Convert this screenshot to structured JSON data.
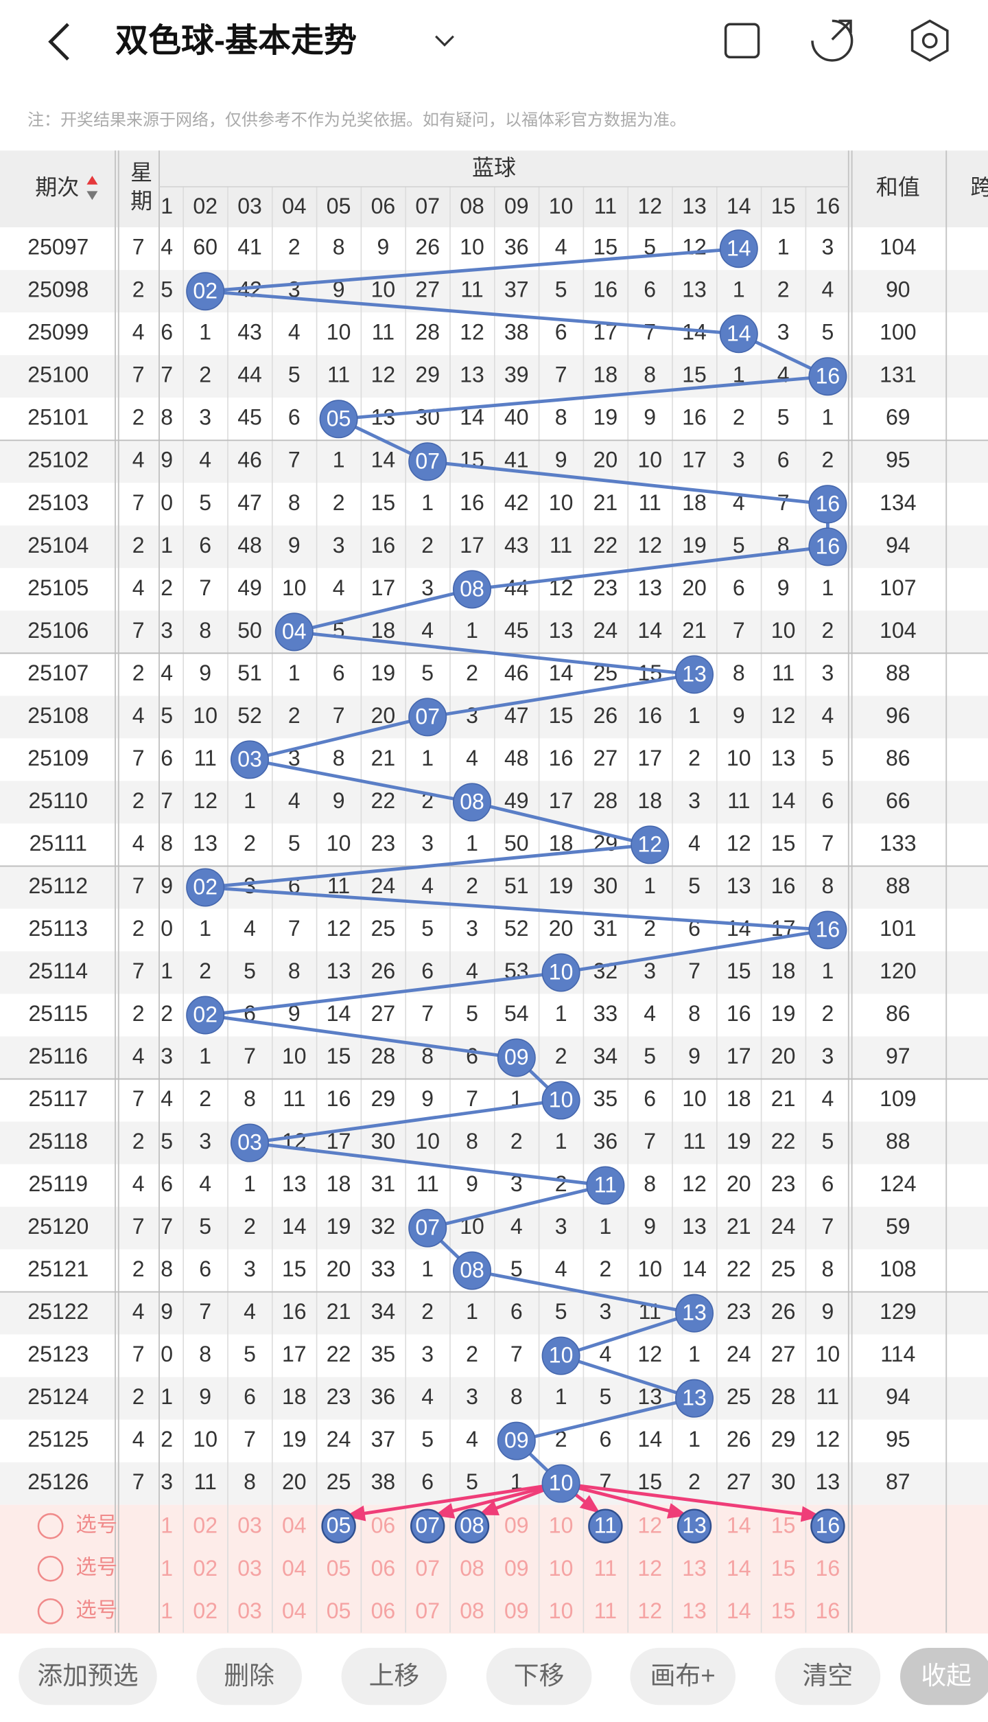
{
  "header": {
    "title": "双色球-基本走势"
  },
  "note": "注：开奖结果来源于网络，仅供参考不作为兑奖依据。如有疑问，以福体彩官方数据为准。",
  "table": {
    "period_header": "期次",
    "weekday_header": "星期",
    "group_header": "蓝球",
    "sum_header": "和值",
    "span_header": "跨",
    "columns": [
      "1",
      "02",
      "03",
      "04",
      "05",
      "06",
      "07",
      "08",
      "09",
      "10",
      "11",
      "12",
      "13",
      "14",
      "15",
      "16"
    ],
    "rows": [
      {
        "period": "25097",
        "weekday": "7",
        "cells": [
          "4",
          "60",
          "41",
          "2",
          "8",
          "9",
          "26",
          "10",
          "36",
          "4",
          "15",
          "5",
          "12",
          "14",
          "1",
          "3"
        ],
        "hit": 13,
        "sum": "104"
      },
      {
        "period": "25098",
        "weekday": "2",
        "cells": [
          "5",
          "02",
          "42",
          "3",
          "9",
          "10",
          "27",
          "11",
          "37",
          "5",
          "16",
          "6",
          "13",
          "1",
          "2",
          "4"
        ],
        "hit": 1,
        "sum": "90"
      },
      {
        "period": "25099",
        "weekday": "4",
        "cells": [
          "6",
          "1",
          "43",
          "4",
          "10",
          "11",
          "28",
          "12",
          "38",
          "6",
          "17",
          "7",
          "14",
          "14",
          "3",
          "5"
        ],
        "hit": 13,
        "sum": "100"
      },
      {
        "period": "25100",
        "weekday": "7",
        "cells": [
          "7",
          "2",
          "44",
          "5",
          "11",
          "12",
          "29",
          "13",
          "39",
          "7",
          "18",
          "8",
          "15",
          "1",
          "4",
          "16"
        ],
        "hit": 15,
        "sum": "131"
      },
      {
        "period": "25101",
        "weekday": "2",
        "cells": [
          "8",
          "3",
          "45",
          "6",
          "05",
          "13",
          "30",
          "14",
          "40",
          "8",
          "19",
          "9",
          "16",
          "2",
          "5",
          "1"
        ],
        "hit": 4,
        "sum": "69"
      },
      {
        "period": "25102",
        "weekday": "4",
        "cells": [
          "9",
          "4",
          "46",
          "7",
          "1",
          "14",
          "07",
          "15",
          "41",
          "9",
          "20",
          "10",
          "17",
          "3",
          "6",
          "2"
        ],
        "hit": 6,
        "sum": "95"
      },
      {
        "period": "25103",
        "weekday": "7",
        "cells": [
          "0",
          "5",
          "47",
          "8",
          "2",
          "15",
          "1",
          "16",
          "42",
          "10",
          "21",
          "11",
          "18",
          "4",
          "7",
          "16"
        ],
        "hit": 15,
        "sum": "134"
      },
      {
        "period": "25104",
        "weekday": "2",
        "cells": [
          "1",
          "6",
          "48",
          "9",
          "3",
          "16",
          "2",
          "17",
          "43",
          "11",
          "22",
          "12",
          "19",
          "5",
          "8",
          "16"
        ],
        "hit": 15,
        "sum": "94"
      },
      {
        "period": "25105",
        "weekday": "4",
        "cells": [
          "2",
          "7",
          "49",
          "10",
          "4",
          "17",
          "3",
          "08",
          "44",
          "12",
          "23",
          "13",
          "20",
          "6",
          "9",
          "1"
        ],
        "hit": 7,
        "sum": "107"
      },
      {
        "period": "25106",
        "weekday": "7",
        "cells": [
          "3",
          "8",
          "50",
          "04",
          "5",
          "18",
          "4",
          "1",
          "45",
          "13",
          "24",
          "14",
          "21",
          "7",
          "10",
          "2"
        ],
        "hit": 3,
        "sum": "104"
      },
      {
        "period": "25107",
        "weekday": "2",
        "cells": [
          "4",
          "9",
          "51",
          "1",
          "6",
          "19",
          "5",
          "2",
          "46",
          "14",
          "25",
          "15",
          "13",
          "8",
          "11",
          "3"
        ],
        "hit": 12,
        "sum": "88"
      },
      {
        "period": "25108",
        "weekday": "4",
        "cells": [
          "5",
          "10",
          "52",
          "2",
          "7",
          "20",
          "07",
          "3",
          "47",
          "15",
          "26",
          "16",
          "1",
          "9",
          "12",
          "4"
        ],
        "hit": 6,
        "sum": "96"
      },
      {
        "period": "25109",
        "weekday": "7",
        "cells": [
          "6",
          "11",
          "03",
          "3",
          "8",
          "21",
          "1",
          "4",
          "48",
          "16",
          "27",
          "17",
          "2",
          "10",
          "13",
          "5"
        ],
        "hit": 2,
        "sum": "86"
      },
      {
        "period": "25110",
        "weekday": "2",
        "cells": [
          "7",
          "12",
          "1",
          "4",
          "9",
          "22",
          "2",
          "08",
          "49",
          "17",
          "28",
          "18",
          "3",
          "11",
          "14",
          "6"
        ],
        "hit": 7,
        "sum": "66"
      },
      {
        "period": "25111",
        "weekday": "4",
        "cells": [
          "8",
          "13",
          "2",
          "5",
          "10",
          "23",
          "3",
          "1",
          "50",
          "18",
          "29",
          "12",
          "4",
          "12",
          "15",
          "7"
        ],
        "hit": 11,
        "sum": "133"
      },
      {
        "period": "25112",
        "weekday": "7",
        "cells": [
          "9",
          "02",
          "3",
          "6",
          "11",
          "24",
          "4",
          "2",
          "51",
          "19",
          "30",
          "1",
          "5",
          "13",
          "16",
          "8"
        ],
        "hit": 1,
        "sum": "88"
      },
      {
        "period": "25113",
        "weekday": "2",
        "cells": [
          "0",
          "1",
          "4",
          "7",
          "12",
          "25",
          "5",
          "3",
          "52",
          "20",
          "31",
          "2",
          "6",
          "14",
          "17",
          "16"
        ],
        "hit": 15,
        "sum": "101"
      },
      {
        "period": "25114",
        "weekday": "7",
        "cells": [
          "1",
          "2",
          "5",
          "8",
          "13",
          "26",
          "6",
          "4",
          "53",
          "10",
          "32",
          "3",
          "7",
          "15",
          "18",
          "1"
        ],
        "hit": 9,
        "sum": "120"
      },
      {
        "period": "25115",
        "weekday": "2",
        "cells": [
          "2",
          "02",
          "6",
          "9",
          "14",
          "27",
          "7",
          "5",
          "54",
          "1",
          "33",
          "4",
          "8",
          "16",
          "19",
          "2"
        ],
        "hit": 1,
        "sum": "86"
      },
      {
        "period": "25116",
        "weekday": "4",
        "cells": [
          "3",
          "1",
          "7",
          "10",
          "15",
          "28",
          "8",
          "6",
          "09",
          "2",
          "34",
          "5",
          "9",
          "17",
          "20",
          "3"
        ],
        "hit": 8,
        "sum": "97"
      },
      {
        "period": "25117",
        "weekday": "7",
        "cells": [
          "4",
          "2",
          "8",
          "11",
          "16",
          "29",
          "9",
          "7",
          "1",
          "10",
          "35",
          "6",
          "10",
          "18",
          "21",
          "4"
        ],
        "hit": 9,
        "sum": "109"
      },
      {
        "period": "25118",
        "weekday": "2",
        "cells": [
          "5",
          "3",
          "03",
          "12",
          "17",
          "30",
          "10",
          "8",
          "2",
          "1",
          "36",
          "7",
          "11",
          "19",
          "22",
          "5"
        ],
        "hit": 2,
        "sum": "88"
      },
      {
        "period": "25119",
        "weekday": "4",
        "cells": [
          "6",
          "4",
          "1",
          "13",
          "18",
          "31",
          "11",
          "9",
          "3",
          "2",
          "11",
          "8",
          "12",
          "20",
          "23",
          "6"
        ],
        "hit": 10,
        "sum": "124"
      },
      {
        "period": "25120",
        "weekday": "7",
        "cells": [
          "7",
          "5",
          "2",
          "14",
          "19",
          "32",
          "07",
          "10",
          "4",
          "3",
          "1",
          "9",
          "13",
          "21",
          "24",
          "7"
        ],
        "hit": 6,
        "sum": "59"
      },
      {
        "period": "25121",
        "weekday": "2",
        "cells": [
          "8",
          "6",
          "3",
          "15",
          "20",
          "33",
          "1",
          "08",
          "5",
          "4",
          "2",
          "10",
          "14",
          "22",
          "25",
          "8"
        ],
        "hit": 7,
        "sum": "108"
      },
      {
        "period": "25122",
        "weekday": "4",
        "cells": [
          "9",
          "7",
          "4",
          "16",
          "21",
          "34",
          "2",
          "1",
          "6",
          "5",
          "3",
          "11",
          "13",
          "23",
          "26",
          "9"
        ],
        "hit": 12,
        "sum": "129"
      },
      {
        "period": "25123",
        "weekday": "7",
        "cells": [
          "0",
          "8",
          "5",
          "17",
          "22",
          "35",
          "3",
          "2",
          "7",
          "10",
          "4",
          "12",
          "1",
          "24",
          "27",
          "10"
        ],
        "hit": 9,
        "sum": "114"
      },
      {
        "period": "25124",
        "weekday": "2",
        "cells": [
          "1",
          "9",
          "6",
          "18",
          "23",
          "36",
          "4",
          "3",
          "8",
          "1",
          "5",
          "13",
          "13",
          "25",
          "28",
          "11"
        ],
        "hit": 12,
        "sum": "94"
      },
      {
        "period": "25125",
        "weekday": "4",
        "cells": [
          "2",
          "10",
          "7",
          "19",
          "24",
          "37",
          "5",
          "4",
          "09",
          "2",
          "6",
          "14",
          "1",
          "26",
          "29",
          "12"
        ],
        "hit": 8,
        "sum": "95"
      },
      {
        "period": "25126",
        "weekday": "7",
        "cells": [
          "3",
          "11",
          "8",
          "20",
          "25",
          "38",
          "6",
          "5",
          "1",
          "10",
          "7",
          "15",
          "2",
          "27",
          "30",
          "13"
        ],
        "hit": 9,
        "sum": "87"
      }
    ]
  },
  "selection": {
    "rows": [
      {
        "label": "选号",
        "cells": [
          "1",
          "02",
          "03",
          "04",
          "05",
          "06",
          "07",
          "08",
          "09",
          "10",
          "11",
          "12",
          "13",
          "14",
          "15",
          "16"
        ],
        "picked": [
          4,
          6,
          7,
          10,
          12,
          15
        ]
      },
      {
        "label": "选号",
        "cells": [
          "1",
          "02",
          "03",
          "04",
          "05",
          "06",
          "07",
          "08",
          "09",
          "10",
          "11",
          "12",
          "13",
          "14",
          "15",
          "16"
        ],
        "picked": []
      },
      {
        "label": "选号",
        "cells": [
          "1",
          "02",
          "03",
          "04",
          "05",
          "06",
          "07",
          "08",
          "09",
          "10",
          "11",
          "12",
          "13",
          "14",
          "15",
          "16"
        ],
        "picked": []
      }
    ]
  },
  "buttons": [
    "添加预选",
    "删除",
    "上移",
    "下移",
    "画布+",
    "清空",
    "收起"
  ]
}
